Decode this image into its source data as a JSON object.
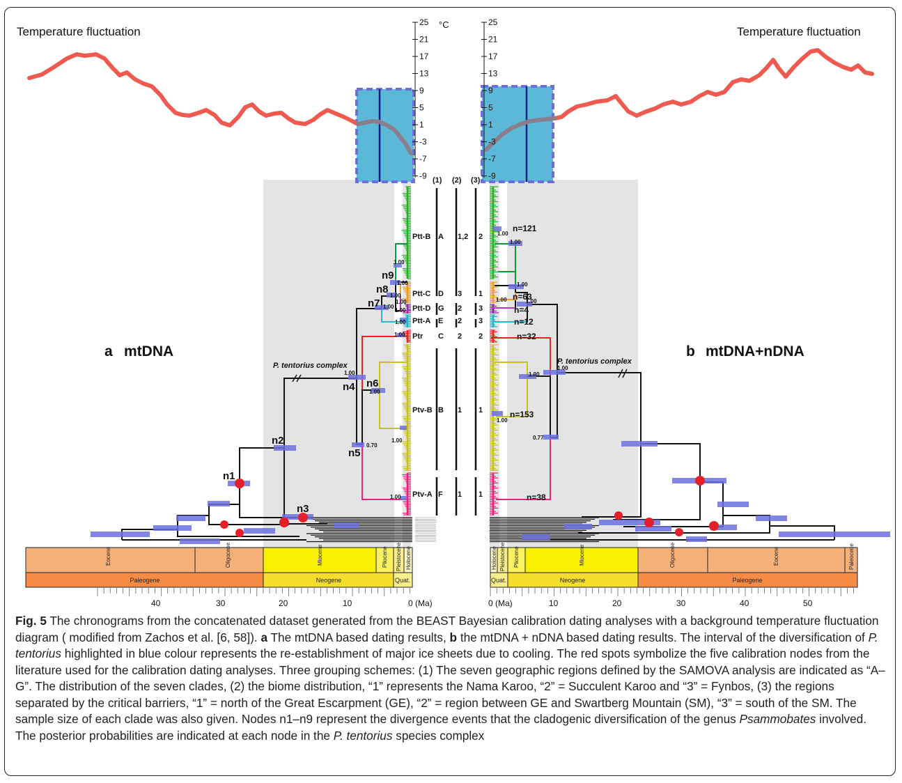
{
  "figure": {
    "temp_label_left": "Temperature fluctuation",
    "temp_label_right": "Temperature fluctuation",
    "temp_unit": "°C",
    "temp_ticks": [
      "25",
      "21",
      "17",
      "13",
      "9",
      "5",
      "1",
      "-3",
      "-7",
      "-9"
    ],
    "panel_a_letter": "a",
    "panel_a_title": "mtDNA",
    "panel_b_letter": "b",
    "panel_b_title": "mtDNA+nDNA",
    "complex_label": "P. tentorius complex",
    "scheme_headers": [
      "(1)",
      "(2)",
      "(3)"
    ],
    "clades": [
      {
        "name": "Ptt-B",
        "region": "A",
        "biome": "1,2",
        "barrier": "2",
        "n": "n=121",
        "color": "#22b322"
      },
      {
        "name": "Ptt-C",
        "region": "D",
        "biome": "3",
        "barrier": "1",
        "n": "n=63",
        "color": "#f39a1e"
      },
      {
        "name": "Ptt-D",
        "region": "G",
        "biome": "2",
        "barrier": "3",
        "n": "n=4",
        "color": "#8a2a9a"
      },
      {
        "name": "Ptt-A",
        "region": "E",
        "biome": "2",
        "barrier": "3",
        "n": "n=12",
        "color": "#1fb5c9"
      },
      {
        "name": "Ptr",
        "region": "C",
        "biome": "2",
        "barrier": "2",
        "n": "n=32",
        "color": "#e8231e"
      },
      {
        "name": "Ptv-B",
        "region": "B",
        "biome": "1",
        "barrier": "1",
        "n": "n=153",
        "color": "#c9c21e"
      },
      {
        "name": "Ptv-A",
        "region": "F",
        "biome": "1",
        "barrier": "1",
        "n": "n=38",
        "color": "#e8237a"
      }
    ],
    "nodes_a": [
      "n1",
      "n2",
      "n3",
      "n4",
      "n5",
      "n6",
      "n7",
      "n8",
      "n9"
    ],
    "posteriors_a": [
      "1.00",
      "1.00",
      "1.00",
      "1.00",
      "1.00",
      "1.00",
      "1.00",
      "1.00",
      "1.00",
      "1.00",
      "0.70",
      "1.00",
      "1.00"
    ],
    "posteriors_b": [
      "1.00",
      "1.00",
      "1.00",
      "1.00",
      "1.00",
      "1.00",
      "0.77",
      "1.00",
      "1.00"
    ],
    "epochs_a": [
      "Eocene",
      "Oligocene",
      "Miocene",
      "Pliocene",
      "Pleistocene",
      "Holocene"
    ],
    "periods_a": [
      "Paleogene",
      "Neogene",
      "Quat."
    ],
    "epochs_b": [
      "Holocene",
      "Pleistocene",
      "Pliocene",
      "Miocene",
      "Oligocene",
      "Eocene",
      "Paleocene"
    ],
    "periods_b": [
      "Quat.",
      "Neogene",
      "Paleogene"
    ],
    "axis_a_ticks": [
      "40",
      "30",
      "20",
      "10",
      "0 (Ma)"
    ],
    "axis_b_ticks": [
      "0 (Ma)",
      "10",
      "20",
      "30",
      "40",
      "50"
    ],
    "colors": {
      "temperature_curve": "#ee5a4f",
      "highlight_box": "#5bb8d6",
      "highlight_border": "#6b6fd6",
      "shade": "#e4e4e4",
      "hpd_bar": "#6c72e0",
      "calibration_dot": "#e3202a",
      "paleogene": "#f6a468",
      "neogene": "#f7f000",
      "quaternary": "#fbef8d"
    }
  },
  "caption": {
    "fig_label": "Fig. 5",
    "s1": "The chronograms from the concatenated dataset generated from the BEAST Bayesian calibration dating analyses with a background temperature fluctuation diagram ( modified from Zachos et al. [6, 58]).",
    "a_bold": "a",
    "a_text": "The mtDNA based dating results,",
    "b_bold": "b",
    "b_text": "the mtDNA + nDNA based dating results. The interval of the diversification of",
    "species1": "P. tentorius",
    "s2": "highlighted in blue colour represents the re-establishment of major ice sheets due to cooling. The red spots symbolize the five calibration nodes from the literature used for the calibration dating analyses. Three grouping schemes: (1) The seven geographic regions defined by the SAMOVA analysis are indicated as “A–G”. The distribution of the seven clades, (2) the biome distribution, “1” represents the Nama Karoo, “2” = Succulent Karoo and “3” = Fynbos, (3) the regions separated by the critical barriers, “1” = north of the Great Escarpment (GE), “2” = region between GE and Swartberg Mountain (SM), “3” = south of the SM. The sample size of each clade was also given. Nodes n1–n9 represent the divergence events that the cladogenic diversification of the genus",
    "genus": "Psammobates",
    "s3": "involved. The posterior probabilities are indicated at each node in the",
    "species2": "P. tentorius",
    "s4": "species complex"
  }
}
